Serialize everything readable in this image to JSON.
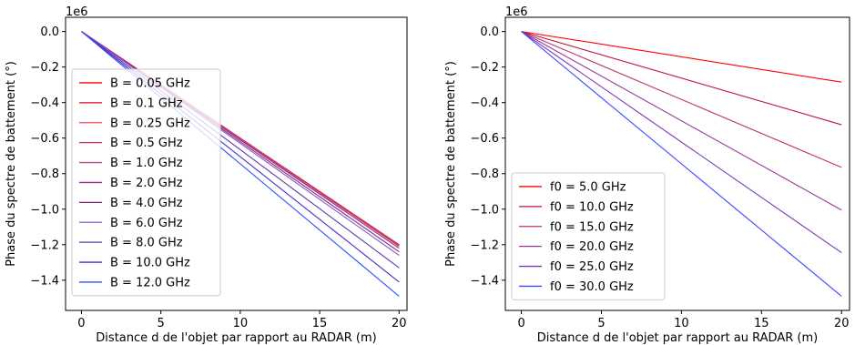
{
  "chart_data": [
    {
      "type": "line",
      "title": "",
      "offset_label": "1e6",
      "xlabel": "Distance d de l'objet par rapport au RADAR (m)",
      "ylabel": "Phase du spectre de battement (°)",
      "xlim": [
        -1,
        20.5
      ],
      "ylim": [
        -1.57,
        0.08
      ],
      "xticks": [
        0,
        5,
        10,
        15,
        20
      ],
      "xtick_labels": [
        "0",
        "5",
        "10",
        "15",
        "20"
      ],
      "yticks": [
        0.0,
        -0.2,
        -0.4,
        -0.6,
        -0.8,
        -1.0,
        -1.2,
        -1.4
      ],
      "ytick_labels": [
        "0.0",
        "−0.2",
        "−0.4",
        "−0.6",
        "−0.8",
        "−1.0",
        "−1.2",
        "−1.4"
      ],
      "grid": false,
      "legend_position": "lower-left",
      "x": [
        0,
        20
      ],
      "series": [
        {
          "name": "B = 0.05 GHz",
          "color": "#ff0000",
          "values": [
            0,
            -1.2005
          ]
        },
        {
          "name": "B = 0.1 GHz",
          "color": "#e8001e",
          "values": [
            0,
            -1.201
          ]
        },
        {
          "name": "B = 0.25 GHz",
          "color": "#e8475f",
          "values": [
            0,
            -1.2025
          ]
        },
        {
          "name": "B = 0.5 GHz",
          "color": "#c0304f",
          "values": [
            0,
            -1.205
          ]
        },
        {
          "name": "B = 1.0 GHz",
          "color": "#c04a8a",
          "values": [
            0,
            -1.21
          ]
        },
        {
          "name": "B = 2.0 GHz",
          "color": "#9b2a8a",
          "values": [
            0,
            -1.22
          ]
        },
        {
          "name": "B = 4.0 GHz",
          "color": "#7a2a7a",
          "values": [
            0,
            -1.24
          ]
        },
        {
          "name": "B = 6.0 GHz",
          "color": "#8a5ad0",
          "values": [
            0,
            -1.26
          ]
        },
        {
          "name": "B = 8.0 GHz",
          "color": "#5a3ab0",
          "values": [
            0,
            -1.33
          ]
        },
        {
          "name": "B = 10.0 GHz",
          "color": "#4a2ac8",
          "values": [
            0,
            -1.41
          ]
        },
        {
          "name": "B = 12.0 GHz",
          "color": "#3050ff",
          "values": [
            0,
            -1.49
          ]
        }
      ]
    },
    {
      "type": "line",
      "title": "",
      "offset_label": "1e6",
      "xlabel": "Distance d de l'objet par rapport au RADAR (m)",
      "ylabel": "Phase du spectre de battement (°)",
      "xlim": [
        -1,
        20.5
      ],
      "ylim": [
        -1.57,
        0.08
      ],
      "xticks": [
        0,
        5,
        10,
        15,
        20
      ],
      "xtick_labels": [
        "0",
        "5",
        "10",
        "15",
        "20"
      ],
      "yticks": [
        0.0,
        -0.2,
        -0.4,
        -0.6,
        -0.8,
        -1.0,
        -1.2,
        -1.4
      ],
      "ytick_labels": [
        "0.0",
        "−0.2",
        "−0.4",
        "−0.6",
        "−0.8",
        "−1.0",
        "−1.2",
        "−1.4"
      ],
      "grid": false,
      "legend_position": "lower-left",
      "x": [
        0,
        20
      ],
      "series": [
        {
          "name": "f0 = 5.0 GHz",
          "color": "#ff0000",
          "values": [
            0,
            -0.285
          ]
        },
        {
          "name": "f0 = 10.0 GHz",
          "color": "#c01040",
          "values": [
            0,
            -0.525
          ]
        },
        {
          "name": "f0 = 15.0 GHz",
          "color": "#c03070",
          "values": [
            0,
            -0.765
          ]
        },
        {
          "name": "f0 = 20.0 GHz",
          "color": "#9a3a9a",
          "values": [
            0,
            -1.005
          ]
        },
        {
          "name": "f0 = 25.0 GHz",
          "color": "#7a3ab5",
          "values": [
            0,
            -1.245
          ]
        },
        {
          "name": "f0 = 30.0 GHz",
          "color": "#3a4aff",
          "values": [
            0,
            -1.49
          ]
        }
      ]
    }
  ]
}
